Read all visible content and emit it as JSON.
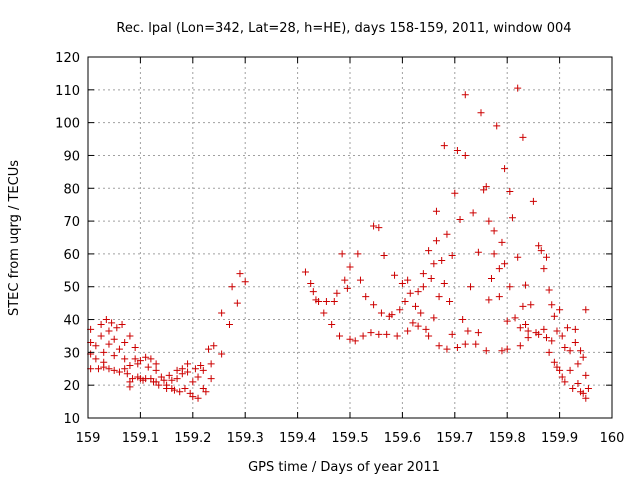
{
  "chart_data": {
    "type": "scatter",
    "title": "Rec. lpal (Lon=342, Lat=28, h=HE), days 158-159, 2011, window 004",
    "xlabel": "GPS time / Days of year 2011",
    "ylabel": "STEC from uqrg / TECUs",
    "xlim": [
      159,
      160
    ],
    "ylim": [
      10,
      120
    ],
    "xticks": [
      "159",
      "159.1",
      "159.2",
      "159.3",
      "159.4",
      "159.5",
      "159.6",
      "159.7",
      "159.8",
      "159.9",
      "160"
    ],
    "yticks": [
      "10",
      "20",
      "30",
      "40",
      "50",
      "60",
      "70",
      "80",
      "90",
      "100",
      "110",
      "120"
    ],
    "grid": true,
    "legend": "none",
    "marker": "plus",
    "color": "#cc0000",
    "series": [
      {
        "points": [
          [
            159.005,
            37.0
          ],
          [
            159.005,
            33.0
          ],
          [
            159.005,
            29.5
          ],
          [
            159.005,
            25.0
          ],
          [
            159.015,
            32.0
          ],
          [
            159.015,
            28.0
          ],
          [
            159.02,
            25.0
          ],
          [
            159.025,
            38.5
          ],
          [
            159.025,
            35.0
          ],
          [
            159.03,
            30.0
          ],
          [
            159.03,
            27.0
          ],
          [
            159.03,
            25.5
          ],
          [
            159.035,
            40.0
          ],
          [
            159.04,
            36.5
          ],
          [
            159.04,
            32.5
          ],
          [
            159.04,
            25.0
          ],
          [
            159.045,
            39.0
          ],
          [
            159.05,
            34.0
          ],
          [
            159.05,
            29.0
          ],
          [
            159.05,
            24.5
          ],
          [
            159.055,
            37.5
          ],
          [
            159.06,
            31.0
          ],
          [
            159.06,
            24.0
          ],
          [
            159.065,
            38.5
          ],
          [
            159.07,
            33.0
          ],
          [
            159.07,
            28.0
          ],
          [
            159.07,
            25.0
          ],
          [
            159.075,
            23.5
          ],
          [
            159.08,
            35.0
          ],
          [
            159.08,
            26.0
          ],
          [
            159.08,
            21.0
          ],
          [
            159.08,
            19.5
          ],
          [
            159.085,
            22.0
          ],
          [
            159.09,
            31.5
          ],
          [
            159.09,
            28.0
          ],
          [
            159.095,
            26.5
          ],
          [
            159.095,
            22.5
          ],
          [
            159.1,
            27.5
          ],
          [
            159.1,
            22.0
          ],
          [
            159.105,
            21.5
          ],
          [
            159.11,
            28.5
          ],
          [
            159.11,
            22.0
          ],
          [
            159.115,
            25.5
          ],
          [
            159.12,
            28.0
          ],
          [
            159.12,
            22.0
          ],
          [
            159.125,
            21.0
          ],
          [
            159.13,
            26.5
          ],
          [
            159.13,
            24.5
          ],
          [
            159.13,
            21.0
          ],
          [
            159.135,
            20.0
          ],
          [
            159.14,
            22.5
          ],
          [
            159.145,
            21.5
          ],
          [
            159.15,
            20.0
          ],
          [
            159.15,
            19.0
          ],
          [
            159.155,
            23.0
          ],
          [
            159.16,
            21.5
          ],
          [
            159.16,
            19.0
          ],
          [
            159.165,
            18.5
          ],
          [
            159.17,
            24.5
          ],
          [
            159.17,
            22.0
          ],
          [
            159.175,
            18.0
          ],
          [
            159.18,
            25.0
          ],
          [
            159.18,
            23.5
          ],
          [
            159.185,
            19.0
          ],
          [
            159.19,
            26.5
          ],
          [
            159.19,
            24.0
          ],
          [
            159.195,
            17.5
          ],
          [
            159.2,
            21.0
          ],
          [
            159.2,
            16.5
          ],
          [
            159.205,
            25.0
          ],
          [
            159.21,
            22.5
          ],
          [
            159.21,
            16.0
          ],
          [
            159.215,
            26.0
          ],
          [
            159.22,
            24.5
          ],
          [
            159.22,
            19.0
          ],
          [
            159.225,
            18.0
          ],
          [
            159.23,
            31.0
          ],
          [
            159.235,
            26.5
          ],
          [
            159.235,
            22.0
          ],
          [
            159.24,
            32.0
          ],
          [
            159.255,
            29.5
          ],
          [
            159.255,
            42.0
          ],
          [
            159.27,
            38.5
          ],
          [
            159.275,
            50.0
          ],
          [
            159.285,
            45.0
          ],
          [
            159.29,
            54.0
          ],
          [
            159.3,
            51.5
          ],
          [
            159.415,
            54.5
          ],
          [
            159.425,
            51.0
          ],
          [
            159.43,
            48.5
          ],
          [
            159.435,
            46.0
          ],
          [
            159.44,
            45.5
          ],
          [
            159.45,
            42.0
          ],
          [
            159.455,
            45.5
          ],
          [
            159.465,
            38.5
          ],
          [
            159.47,
            45.5
          ],
          [
            159.475,
            48.0
          ],
          [
            159.48,
            35.0
          ],
          [
            159.485,
            60.0
          ],
          [
            159.49,
            52.0
          ],
          [
            159.495,
            49.5
          ],
          [
            159.5,
            56.0
          ],
          [
            159.5,
            34.0
          ],
          [
            159.51,
            33.5
          ],
          [
            159.515,
            60.0
          ],
          [
            159.52,
            52.0
          ],
          [
            159.525,
            35.0
          ],
          [
            159.53,
            47.0
          ],
          [
            159.54,
            36.0
          ],
          [
            159.545,
            44.5
          ],
          [
            159.545,
            68.5
          ],
          [
            159.555,
            35.5
          ],
          [
            159.555,
            68.0
          ],
          [
            159.56,
            42.0
          ],
          [
            159.565,
            59.5
          ],
          [
            159.57,
            35.5
          ],
          [
            159.575,
            41.0
          ],
          [
            159.58,
            41.5
          ],
          [
            159.585,
            53.5
          ],
          [
            159.59,
            35.0
          ],
          [
            159.595,
            43.0
          ],
          [
            159.6,
            51.0
          ],
          [
            159.605,
            45.5
          ],
          [
            159.61,
            52.0
          ],
          [
            159.61,
            36.5
          ],
          [
            159.615,
            48.0
          ],
          [
            159.62,
            39.0
          ],
          [
            159.625,
            44.0
          ],
          [
            159.63,
            38.0
          ],
          [
            159.63,
            48.5
          ],
          [
            159.635,
            42.0
          ],
          [
            159.64,
            50.0
          ],
          [
            159.64,
            54.0
          ],
          [
            159.645,
            37.0
          ],
          [
            159.65,
            61.0
          ],
          [
            159.65,
            35.0
          ],
          [
            159.655,
            52.5
          ],
          [
            159.66,
            40.5
          ],
          [
            159.66,
            57.0
          ],
          [
            159.665,
            64.0
          ],
          [
            159.665,
            73.0
          ],
          [
            159.67,
            47.0
          ],
          [
            159.67,
            32.0
          ],
          [
            159.675,
            58.0
          ],
          [
            159.68,
            51.0
          ],
          [
            159.68,
            93.0
          ],
          [
            159.685,
            66.0
          ],
          [
            159.685,
            31.0
          ],
          [
            159.69,
            45.5
          ],
          [
            159.695,
            35.5
          ],
          [
            159.695,
            59.5
          ],
          [
            159.7,
            78.5
          ],
          [
            159.705,
            31.5
          ],
          [
            159.705,
            91.5
          ],
          [
            159.71,
            70.5
          ],
          [
            159.715,
            40.0
          ],
          [
            159.72,
            90.0
          ],
          [
            159.72,
            108.5
          ],
          [
            159.72,
            32.5
          ],
          [
            159.725,
            36.5
          ],
          [
            159.73,
            50.0
          ],
          [
            159.735,
            72.5
          ],
          [
            159.74,
            32.5
          ],
          [
            159.745,
            36.0
          ],
          [
            159.745,
            60.5
          ],
          [
            159.75,
            103.0
          ],
          [
            159.755,
            79.5
          ],
          [
            159.76,
            30.5
          ],
          [
            159.76,
            80.5
          ],
          [
            159.765,
            46.0
          ],
          [
            159.765,
            70.0
          ],
          [
            159.77,
            52.5
          ],
          [
            159.775,
            60.0
          ],
          [
            159.775,
            67.0
          ],
          [
            159.78,
            99.0
          ],
          [
            159.785,
            55.5
          ],
          [
            159.785,
            47.0
          ],
          [
            159.79,
            30.5
          ],
          [
            159.79,
            63.5
          ],
          [
            159.795,
            57.0
          ],
          [
            159.795,
            86.0
          ],
          [
            159.8,
            31.0
          ],
          [
            159.8,
            39.5
          ],
          [
            159.805,
            50.0
          ],
          [
            159.805,
            79.0
          ],
          [
            159.81,
            71.0
          ],
          [
            159.815,
            40.5
          ],
          [
            159.82,
            59.0
          ],
          [
            159.82,
            110.5
          ],
          [
            159.825,
            32.0
          ],
          [
            159.825,
            37.5
          ],
          [
            159.83,
            44.0
          ],
          [
            159.83,
            95.5
          ],
          [
            159.835,
            38.5
          ],
          [
            159.835,
            50.5
          ],
          [
            159.84,
            34.5
          ],
          [
            159.84,
            36.5
          ],
          [
            159.845,
            44.5
          ],
          [
            159.85,
            76.0
          ],
          [
            159.855,
            36.0
          ],
          [
            159.86,
            35.5
          ],
          [
            159.86,
            62.5
          ],
          [
            159.865,
            61.0
          ],
          [
            159.87,
            37.0
          ],
          [
            159.87,
            55.5
          ],
          [
            159.875,
            34.5
          ],
          [
            159.875,
            59.0
          ],
          [
            159.88,
            30.0
          ],
          [
            159.88,
            49.0
          ],
          [
            159.885,
            33.5
          ],
          [
            159.885,
            44.5
          ],
          [
            159.89,
            27.0
          ],
          [
            159.89,
            41.0
          ],
          [
            159.895,
            25.5
          ],
          [
            159.895,
            36.5
          ],
          [
            159.9,
            24.5
          ],
          [
            159.9,
            43.0
          ],
          [
            159.905,
            22.5
          ],
          [
            159.905,
            35.0
          ],
          [
            159.91,
            31.5
          ],
          [
            159.91,
            21.0
          ],
          [
            159.915,
            37.5
          ],
          [
            159.92,
            30.5
          ],
          [
            159.92,
            24.5
          ],
          [
            159.925,
            19.0
          ],
          [
            159.93,
            37.0
          ],
          [
            159.93,
            33.0
          ],
          [
            159.935,
            26.5
          ],
          [
            159.935,
            20.5
          ],
          [
            159.94,
            30.5
          ],
          [
            159.94,
            18.0
          ],
          [
            159.945,
            28.5
          ],
          [
            159.945,
            17.5
          ],
          [
            159.95,
            43.0
          ],
          [
            159.95,
            23.0
          ],
          [
            159.95,
            16.0
          ],
          [
            159.955,
            19.0
          ]
        ]
      }
    ]
  }
}
